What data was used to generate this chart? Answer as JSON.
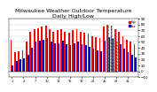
{
  "title": "Milwaukee Weather Outdoor Temperature\nDaily High/Low",
  "title_fontsize": 4.5,
  "background_color": "#ffffff",
  "highs": [
    54,
    32,
    34,
    36,
    50,
    68,
    72,
    74,
    76,
    78,
    72,
    68,
    70,
    72,
    68,
    66,
    70,
    72,
    68,
    66,
    64,
    60,
    58,
    56,
    76,
    80,
    78,
    72,
    68,
    60,
    54,
    50,
    46
  ],
  "lows": [
    10,
    18,
    20,
    22,
    28,
    40,
    50,
    52,
    54,
    56,
    50,
    48,
    48,
    52,
    46,
    44,
    48,
    50,
    46,
    44,
    42,
    38,
    36,
    34,
    52,
    58,
    56,
    50,
    46,
    38,
    32,
    28,
    24
  ],
  "high_color": "#ff0000",
  "low_color": "#0000cc",
  "ylim": [
    -10,
    90
  ],
  "yticks": [
    -10,
    0,
    10,
    20,
    30,
    40,
    50,
    60,
    70,
    80,
    90
  ],
  "bar_width": 0.4,
  "dashed_bar_indices": [
    25,
    26,
    27
  ],
  "grid_color": "#cccccc"
}
